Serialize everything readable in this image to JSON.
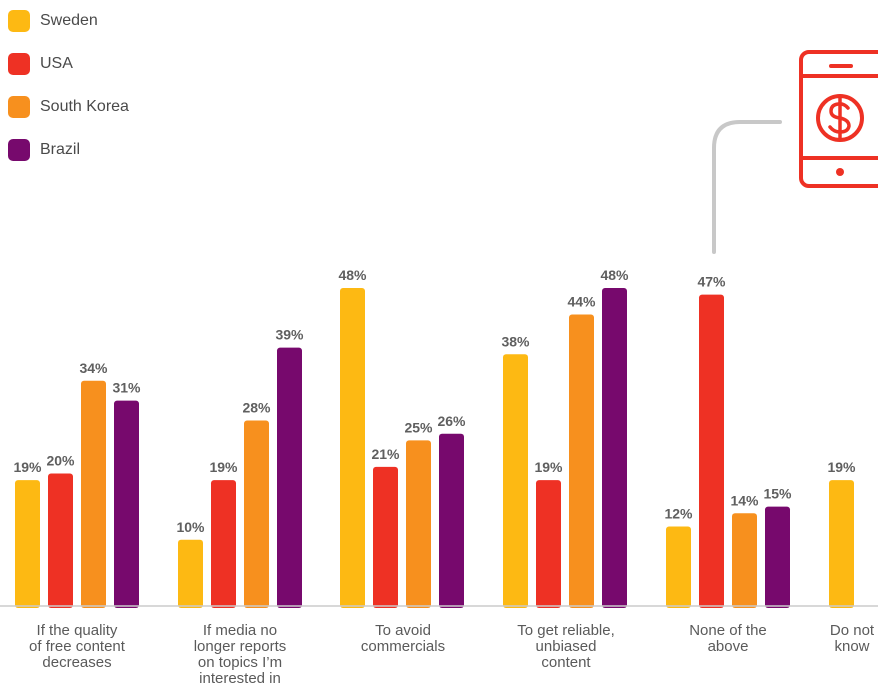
{
  "chart_data": {
    "type": "bar",
    "legend_position": "top-left",
    "categories": [
      "If the quality of free content decreases",
      "If media no longer reports on topics I’m interested in",
      "To avoid commercials",
      "To get reliable, unbiased content",
      "None of the above",
      "Do not know"
    ],
    "category_lines": [
      [
        "If the quality",
        "of free content",
        "decreases"
      ],
      [
        "If media no",
        "longer reports",
        "on topics I’m",
        "interested in"
      ],
      [
        "To avoid",
        "commercials"
      ],
      [
        "To get reliable,",
        "unbiased",
        "content"
      ],
      [
        "None of the",
        "above"
      ],
      [
        "Do not",
        "know"
      ]
    ],
    "series": [
      {
        "name": "Sweden",
        "color": "#FDB913",
        "values": [
          19,
          10,
          48,
          38,
          12,
          19
        ]
      },
      {
        "name": "USA",
        "color": "#EE3124",
        "values": [
          20,
          19,
          21,
          19,
          47,
          null
        ]
      },
      {
        "name": "South Korea",
        "color": "#F7901E",
        "values": [
          34,
          28,
          25,
          44,
          14,
          null
        ]
      },
      {
        "name": "Brazil",
        "color": "#77096D",
        "values": [
          31,
          39,
          26,
          48,
          15,
          null
        ]
      }
    ],
    "value_suffix": "%",
    "ylim": [
      0,
      50
    ],
    "grid": false,
    "icon": "mobile-dollar-icon"
  }
}
